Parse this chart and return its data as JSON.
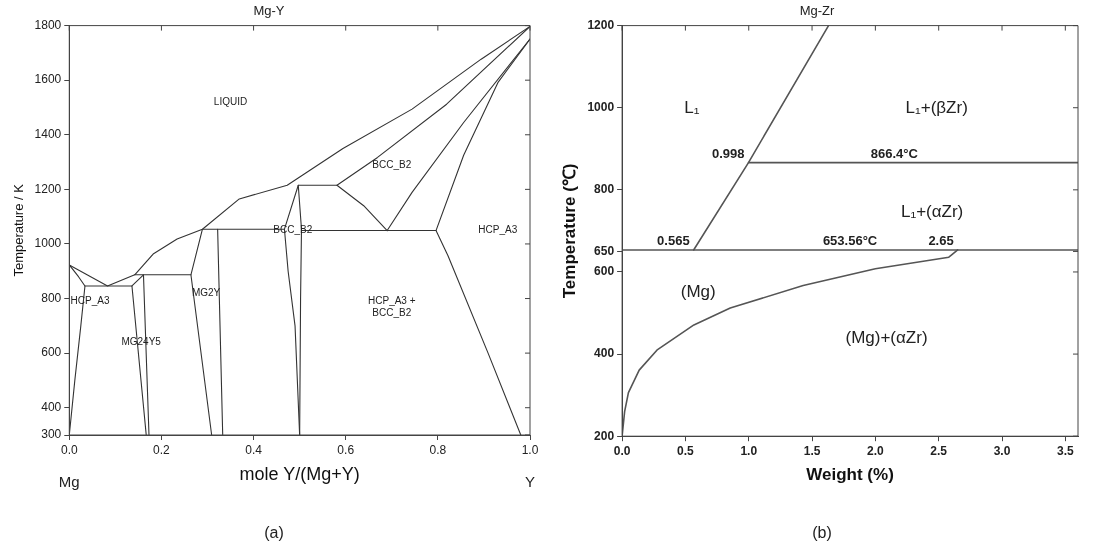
{
  "chart_data": [
    {
      "type": "line",
      "title": "Mg-Y",
      "xlabel": "mole Y/(Mg+Y)",
      "ylabel": "Temperature / K",
      "xlim": [
        0,
        1
      ],
      "ylim": [
        300,
        1800
      ],
      "xticks": [
        {
          "value": 0,
          "label": "0.0"
        },
        0.2,
        0.4,
        0.6,
        0.8,
        {
          "value": 1,
          "label": "1.0"
        }
      ],
      "yticks": [
        300,
        400,
        600,
        800,
        1000,
        1200,
        1400,
        1600,
        1800
      ],
      "grid": false,
      "legend": false,
      "marker": "none",
      "line_style": "solid",
      "series": [
        {
          "color": "#333333",
          "x": [
            0,
            0.083,
            0.142,
            0.182,
            0.234,
            0.289,
            0.369,
            0.473,
            0.594,
            0.744,
            0.894,
            1
          ],
          "values": [
            923,
            846,
            887,
            963,
            1018,
            1054,
            1165,
            1215,
            1350,
            1494,
            1677,
            1797
          ]
        },
        {
          "color": "#333333",
          "x": [
            0,
            0.02,
            0.034,
            0.025,
            0.012,
            0
          ],
          "values": [
            923,
            880,
            846,
            700,
            500,
            300
          ]
        },
        {
          "color": "#333333",
          "x": [
            0.034,
            0.136,
            0.167
          ],
          "values": [
            846,
            846,
            300
          ]
        },
        {
          "color": "#333333",
          "x": [
            0.136,
            0.161,
            0.173
          ],
          "values": [
            846,
            887,
            300
          ]
        },
        {
          "color": "#333333",
          "x": [
            0.142,
            0.264
          ],
          "values": [
            887,
            887
          ]
        },
        {
          "color": "#333333",
          "x": [
            0.309,
            0.264,
            0.289,
            0.467
          ],
          "values": [
            300,
            887,
            1054,
            1054
          ]
        },
        {
          "color": "#333333",
          "x": [
            0.322,
            0.333
          ],
          "values": [
            1054,
            300
          ]
        },
        {
          "color": "#333333",
          "x": [
            0.5,
            0.49,
            0.475,
            0.467,
            0.497,
            0.581,
            0.639,
            0.69
          ],
          "values": [
            300,
            700,
            900,
            1054,
            1215,
            1215,
            1140,
            1049
          ]
        },
        {
          "color": "#333333",
          "x": [
            0.5,
            0.502,
            0.504,
            0.497
          ],
          "values": [
            300,
            800,
            1054,
            1215
          ]
        },
        {
          "color": "#333333",
          "x": [
            0.504,
            0.796,
            0.822,
            0.909,
            0.98
          ],
          "values": [
            1049,
            1049,
            957,
            600,
            300
          ]
        },
        {
          "color": "#333333",
          "x": [
            0.581,
            0.669,
            0.819,
            1
          ],
          "values": [
            1215,
            1317,
            1512,
            1797
          ]
        },
        {
          "color": "#333333",
          "x": [
            0.69,
            0.744,
            0.856,
            1
          ],
          "values": [
            1049,
            1189,
            1445,
            1751
          ]
        },
        {
          "color": "#333333",
          "x": [
            0.796,
            0.856,
            0.931,
            1
          ],
          "values": [
            1049,
            1325,
            1593,
            1751
          ]
        }
      ],
      "annotations": [
        "LIQUID",
        "BCC_B2",
        "BCC_B2",
        "HCP_A3",
        "HCP_A3",
        "HCP_A3 +\nBCC_B2",
        "MG24Y5",
        "MG2Y",
        "Mg",
        "Y",
        "(a)"
      ]
    },
    {
      "type": "line",
      "title": "Mg-Zr",
      "xlabel": "Weight (%)",
      "ylabel": "Temperature (℃)",
      "xlim": [
        0,
        3.6
      ],
      "ylim": [
        200,
        1200
      ],
      "xticks": [
        {
          "value": 0,
          "label": "0.0"
        },
        0.5,
        {
          "value": 1,
          "label": "1.0"
        },
        1.5,
        {
          "value": 2,
          "label": "2.0"
        },
        2.5,
        {
          "value": 3,
          "label": "3.0"
        },
        3.5
      ],
      "yticks": [
        200,
        400,
        600,
        650,
        800,
        1000,
        1200
      ],
      "grid": false,
      "legend": false,
      "marker": "none",
      "line_style": "solid",
      "series": [
        {
          "color": "#555555",
          "x": [
            0.565,
            0.998,
            1.63
          ],
          "values": [
            653.56,
            866.4,
            1200
          ]
        },
        {
          "color": "#555555",
          "x": [
            0.998,
            3.6
          ],
          "values": [
            866.4,
            866.4
          ]
        },
        {
          "color": "#555555",
          "x": [
            0,
            3.6
          ],
          "values": [
            653.56,
            653.56
          ]
        },
        {
          "color": "#555555",
          "x": [
            0,
            0.02,
            0.05,
            0.135,
            0.28,
            0.567,
            0.854,
            1.43,
            2,
            2.58,
            2.65
          ],
          "values": [
            200,
            260,
            306,
            361,
            411,
            471,
            512,
            567,
            608,
            636,
            653.56
          ]
        }
      ],
      "annotations": [
        "L₁",
        "L₁+(βZr)",
        "L₁+(αZr)",
        "(Mg)",
        "(Mg)+(αZr)",
        {
          "text": "0.998",
          "x": 0.998,
          "y": 866.4
        },
        {
          "text": "866.4°C",
          "x": 2.15,
          "y": 866.4
        },
        {
          "text": "0.565",
          "x": 0.565,
          "y": 653.56
        },
        {
          "text": "653.56°C",
          "x": 1.8,
          "y": 653.56
        },
        {
          "text": "2.65",
          "x": 2.65,
          "y": 653.56
        },
        "(b)"
      ]
    }
  ]
}
